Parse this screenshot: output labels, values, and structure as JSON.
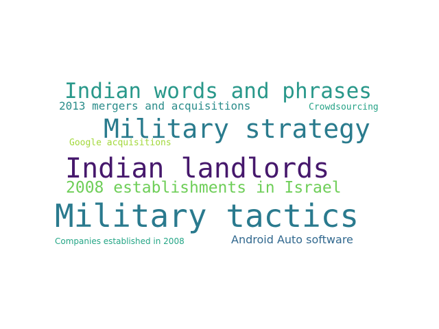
{
  "words": [
    {
      "text": "Indian words and phrases",
      "color": "#29988a"
    },
    {
      "text": "2013 mergers and acquisitions",
      "color": "#2a8c8a"
    },
    {
      "text": "Crowdsourcing",
      "color": "#27a387"
    },
    {
      "text": "Military strategy",
      "color": "#2a7b8d"
    },
    {
      "text": "Google acquisitions",
      "color": "#a2d83a"
    },
    {
      "text": "Indian landlords",
      "color": "#46186c"
    },
    {
      "text": "2008 establishments in Israel",
      "color": "#6ece58"
    },
    {
      "text": "Military tactics",
      "color": "#2a7a8e"
    },
    {
      "text": "Companies established in 2008",
      "color": "#23a585"
    },
    {
      "text": "Android Auto software",
      "color": "#31688e"
    }
  ]
}
